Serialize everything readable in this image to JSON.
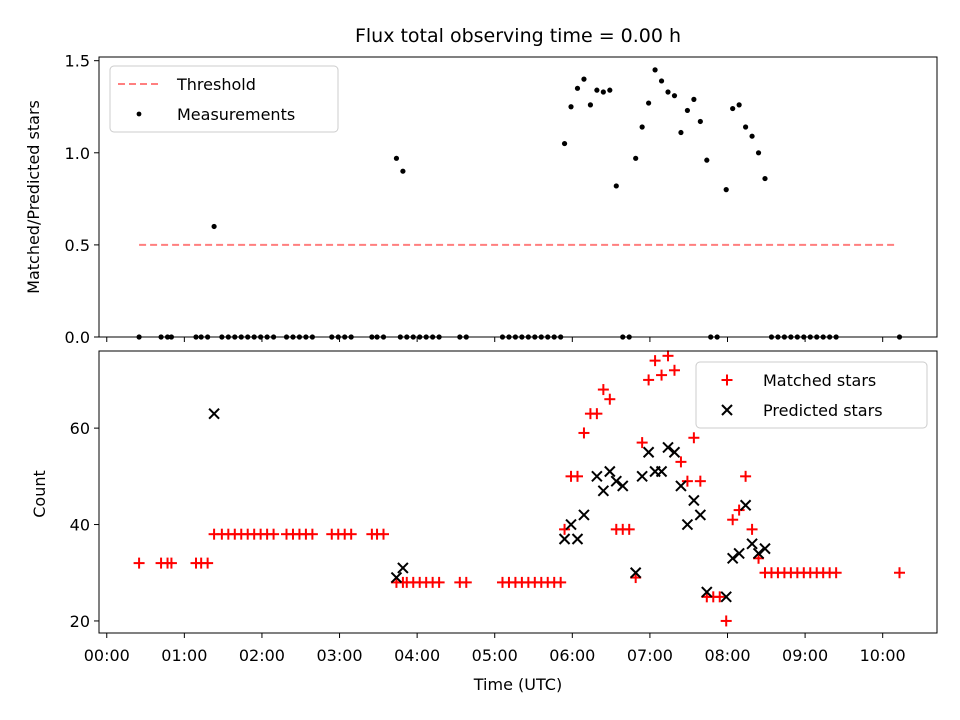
{
  "chart_data": [
    {
      "type": "scatter",
      "title": "Flux total observing time = 0.00 h",
      "xlabel": "",
      "ylabel": "Matched/Predicted stars",
      "xlim_hours": [
        -0.1,
        10.7
      ],
      "ylim": [
        0,
        1.52
      ],
      "yticks": [
        0.0,
        0.5,
        1.0,
        1.5
      ],
      "ytick_labels": [
        "0.0",
        "0.5",
        "1.0",
        "1.5"
      ],
      "legend": {
        "placement": "upper-left",
        "entries": [
          "Threshold",
          "Measurements"
        ]
      },
      "threshold": {
        "name": "Threshold",
        "value": 0.5,
        "x_range": [
          "00:25",
          "10:10"
        ],
        "color": "#ff7f7f",
        "style": "dashed"
      },
      "measurements": {
        "name": "Measurements",
        "color": "#000000",
        "points": [
          [
            "00:25",
            0.0
          ],
          [
            "00:42",
            0.0
          ],
          [
            "00:47",
            0.0
          ],
          [
            "00:50",
            0.0
          ],
          [
            "01:09",
            0.0
          ],
          [
            "01:13",
            0.0
          ],
          [
            "01:18",
            0.0
          ],
          [
            "01:23",
            0.6
          ],
          [
            "01:29",
            0.0
          ],
          [
            "01:34",
            0.0
          ],
          [
            "01:39",
            0.0
          ],
          [
            "01:44",
            0.0
          ],
          [
            "01:49",
            0.0
          ],
          [
            "01:54",
            0.0
          ],
          [
            "01:59",
            0.0
          ],
          [
            "02:04",
            0.0
          ],
          [
            "02:09",
            0.0
          ],
          [
            "02:19",
            0.0
          ],
          [
            "02:24",
            0.0
          ],
          [
            "02:29",
            0.0
          ],
          [
            "02:34",
            0.0
          ],
          [
            "02:39",
            0.0
          ],
          [
            "02:54",
            0.0
          ],
          [
            "02:59",
            0.0
          ],
          [
            "03:04",
            0.0
          ],
          [
            "03:09",
            0.0
          ],
          [
            "03:25",
            0.0
          ],
          [
            "03:29",
            0.0
          ],
          [
            "03:34",
            0.0
          ],
          [
            "03:44",
            0.97
          ],
          [
            "03:49",
            0.9
          ],
          [
            "03:47",
            0.0
          ],
          [
            "03:52",
            0.0
          ],
          [
            "03:57",
            0.0
          ],
          [
            "04:02",
            0.0
          ],
          [
            "04:07",
            0.0
          ],
          [
            "04:12",
            0.0
          ],
          [
            "04:17",
            0.0
          ],
          [
            "04:33",
            0.0
          ],
          [
            "04:38",
            0.0
          ],
          [
            "05:06",
            0.0
          ],
          [
            "05:11",
            0.0
          ],
          [
            "05:16",
            0.0
          ],
          [
            "05:21",
            0.0
          ],
          [
            "05:26",
            0.0
          ],
          [
            "05:31",
            0.0
          ],
          [
            "05:36",
            0.0
          ],
          [
            "05:41",
            0.0
          ],
          [
            "05:46",
            0.0
          ],
          [
            "05:51",
            0.0
          ],
          [
            "05:54",
            1.05
          ],
          [
            "05:59",
            1.25
          ],
          [
            "06:04",
            1.35
          ],
          [
            "06:09",
            1.4
          ],
          [
            "06:14",
            1.26
          ],
          [
            "06:19",
            1.34
          ],
          [
            "06:24",
            1.33
          ],
          [
            "06:29",
            1.34
          ],
          [
            "06:34",
            0.82
          ],
          [
            "06:39",
            0.0
          ],
          [
            "06:44",
            0.0
          ],
          [
            "06:49",
            0.97
          ],
          [
            "06:54",
            1.14
          ],
          [
            "06:59",
            1.27
          ],
          [
            "07:04",
            1.45
          ],
          [
            "07:09",
            1.39
          ],
          [
            "07:14",
            1.33
          ],
          [
            "07:19",
            1.31
          ],
          [
            "07:24",
            1.11
          ],
          [
            "07:29",
            1.23
          ],
          [
            "07:34",
            1.29
          ],
          [
            "07:39",
            1.17
          ],
          [
            "07:44",
            0.96
          ],
          [
            "07:47",
            0.0
          ],
          [
            "07:52",
            0.0
          ],
          [
            "07:59",
            0.8
          ],
          [
            "08:04",
            1.24
          ],
          [
            "08:09",
            1.26
          ],
          [
            "08:14",
            1.14
          ],
          [
            "08:19",
            1.09
          ],
          [
            "08:24",
            1.0
          ],
          [
            "08:29",
            0.86
          ],
          [
            "08:34",
            0.0
          ],
          [
            "08:39",
            0.0
          ],
          [
            "08:44",
            0.0
          ],
          [
            "08:49",
            0.0
          ],
          [
            "08:54",
            0.0
          ],
          [
            "08:59",
            0.0
          ],
          [
            "09:04",
            0.0
          ],
          [
            "09:09",
            0.0
          ],
          [
            "09:14",
            0.0
          ],
          [
            "09:19",
            0.0
          ],
          [
            "09:24",
            0.0
          ],
          [
            "10:13",
            0.0
          ]
        ]
      }
    },
    {
      "type": "scatter",
      "title": "",
      "xlabel": "Time (UTC)",
      "ylabel": "Count",
      "xlim_hours": [
        -0.1,
        10.7
      ],
      "ylim": [
        17.5,
        76
      ],
      "yticks": [
        20,
        40,
        60
      ],
      "ytick_labels": [
        "20",
        "40",
        "60"
      ],
      "xtick_labels": [
        "00:00",
        "01:00",
        "02:00",
        "03:00",
        "04:00",
        "05:00",
        "06:00",
        "07:00",
        "08:00",
        "09:00",
        "10:00"
      ],
      "legend": {
        "placement": "upper-right",
        "entries": [
          "Matched stars",
          "Predicted stars"
        ]
      },
      "series": [
        {
          "name": "Matched stars",
          "marker": "+",
          "color": "#ff0000",
          "points": [
            [
              "00:25",
              32
            ],
            [
              "00:42",
              32
            ],
            [
              "00:47",
              32
            ],
            [
              "00:50",
              32
            ],
            [
              "01:09",
              32
            ],
            [
              "01:13",
              32
            ],
            [
              "01:18",
              32
            ],
            [
              "01:23",
              38
            ],
            [
              "01:29",
              38
            ],
            [
              "01:34",
              38
            ],
            [
              "01:39",
              38
            ],
            [
              "01:44",
              38
            ],
            [
              "01:49",
              38
            ],
            [
              "01:54",
              38
            ],
            [
              "01:59",
              38
            ],
            [
              "02:04",
              38
            ],
            [
              "02:09",
              38
            ],
            [
              "02:19",
              38
            ],
            [
              "02:24",
              38
            ],
            [
              "02:29",
              38
            ],
            [
              "02:34",
              38
            ],
            [
              "02:39",
              38
            ],
            [
              "02:54",
              38
            ],
            [
              "02:59",
              38
            ],
            [
              "03:04",
              38
            ],
            [
              "03:09",
              38
            ],
            [
              "03:25",
              38
            ],
            [
              "03:29",
              38
            ],
            [
              "03:34",
              38
            ],
            [
              "03:44",
              28
            ],
            [
              "03:49",
              28
            ],
            [
              "03:52",
              28
            ],
            [
              "03:57",
              28
            ],
            [
              "04:02",
              28
            ],
            [
              "04:07",
              28
            ],
            [
              "04:12",
              28
            ],
            [
              "04:17",
              28
            ],
            [
              "04:33",
              28
            ],
            [
              "04:38",
              28
            ],
            [
              "05:06",
              28
            ],
            [
              "05:11",
              28
            ],
            [
              "05:16",
              28
            ],
            [
              "05:21",
              28
            ],
            [
              "05:26",
              28
            ],
            [
              "05:31",
              28
            ],
            [
              "05:36",
              28
            ],
            [
              "05:41",
              28
            ],
            [
              "05:46",
              28
            ],
            [
              "05:51",
              28
            ],
            [
              "05:54",
              39
            ],
            [
              "05:59",
              50
            ],
            [
              "06:04",
              50
            ],
            [
              "06:09",
              59
            ],
            [
              "06:14",
              63
            ],
            [
              "06:19",
              63
            ],
            [
              "06:24",
              68
            ],
            [
              "06:29",
              66
            ],
            [
              "06:34",
              39
            ],
            [
              "06:39",
              39
            ],
            [
              "06:44",
              39
            ],
            [
              "06:49",
              29
            ],
            [
              "06:54",
              57
            ],
            [
              "06:59",
              70
            ],
            [
              "07:04",
              74
            ],
            [
              "07:09",
              71
            ],
            [
              "07:14",
              75
            ],
            [
              "07:19",
              72
            ],
            [
              "07:24",
              53
            ],
            [
              "07:29",
              49
            ],
            [
              "07:34",
              58
            ],
            [
              "07:39",
              49
            ],
            [
              "07:44",
              25
            ],
            [
              "07:49",
              25
            ],
            [
              "07:54",
              25
            ],
            [
              "07:59",
              20
            ],
            [
              "08:04",
              41
            ],
            [
              "08:09",
              43
            ],
            [
              "08:14",
              50
            ],
            [
              "08:19",
              39
            ],
            [
              "08:24",
              33
            ],
            [
              "08:29",
              30
            ],
            [
              "08:34",
              30
            ],
            [
              "08:39",
              30
            ],
            [
              "08:44",
              30
            ],
            [
              "08:49",
              30
            ],
            [
              "08:54",
              30
            ],
            [
              "08:59",
              30
            ],
            [
              "09:04",
              30
            ],
            [
              "09:09",
              30
            ],
            [
              "09:14",
              30
            ],
            [
              "09:19",
              30
            ],
            [
              "09:24",
              30
            ],
            [
              "10:13",
              30
            ]
          ]
        },
        {
          "name": "Predicted stars",
          "marker": "x",
          "color": "#000000",
          "points": [
            [
              "01:23",
              63
            ],
            [
              "03:44",
              29
            ],
            [
              "03:49",
              31
            ],
            [
              "05:54",
              37
            ],
            [
              "05:59",
              40
            ],
            [
              "06:04",
              37
            ],
            [
              "06:09",
              42
            ],
            [
              "06:19",
              50
            ],
            [
              "06:24",
              47
            ],
            [
              "06:29",
              51
            ],
            [
              "06:34",
              49
            ],
            [
              "06:39",
              48
            ],
            [
              "06:49",
              30
            ],
            [
              "06:54",
              50
            ],
            [
              "06:59",
              55
            ],
            [
              "07:04",
              51
            ],
            [
              "07:09",
              51
            ],
            [
              "07:14",
              56
            ],
            [
              "07:19",
              55
            ],
            [
              "07:24",
              48
            ],
            [
              "07:29",
              40
            ],
            [
              "07:34",
              45
            ],
            [
              "07:39",
              42
            ],
            [
              "07:44",
              26
            ],
            [
              "07:59",
              25
            ],
            [
              "08:04",
              33
            ],
            [
              "08:09",
              34
            ],
            [
              "08:14",
              44
            ],
            [
              "08:19",
              36
            ],
            [
              "08:24",
              34
            ],
            [
              "08:29",
              35
            ]
          ]
        }
      ]
    }
  ]
}
